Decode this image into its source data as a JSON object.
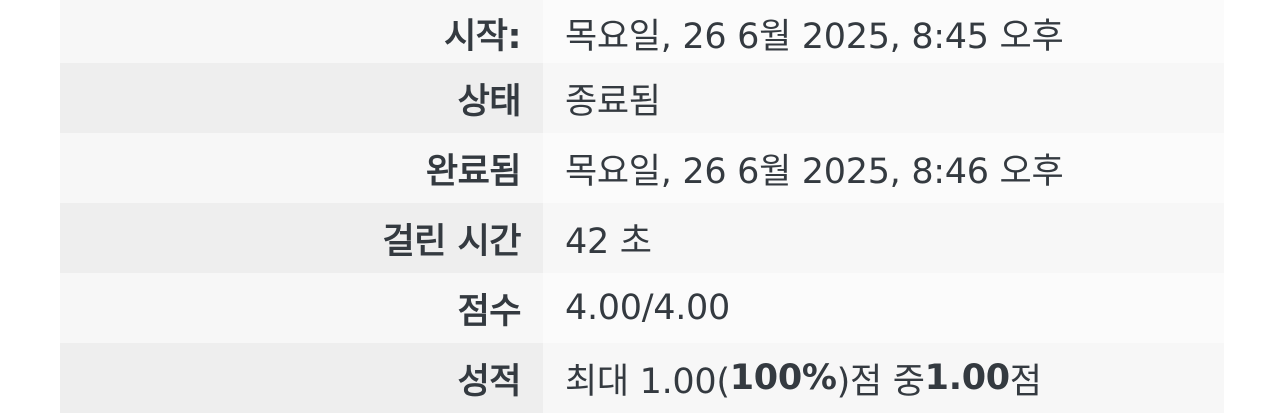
{
  "summary": {
    "rows": [
      {
        "label": "시작:",
        "value": "목요일, 26 6월 2025, 8:45 오후"
      },
      {
        "label": "상태",
        "value": "종료됨"
      },
      {
        "label": "완료됨",
        "value": "목요일, 26 6월 2025, 8:46 오후"
      },
      {
        "label": "걸린 시간",
        "value": "42 초"
      },
      {
        "label": "점수",
        "value": "4.00/4.00"
      },
      {
        "label": "성적",
        "value_parts": {
          "prefix": "최대 1.00(",
          "percent": "100%",
          "middle": ")점 중 ",
          "score": "1.00",
          "suffix": "점"
        }
      }
    ]
  }
}
